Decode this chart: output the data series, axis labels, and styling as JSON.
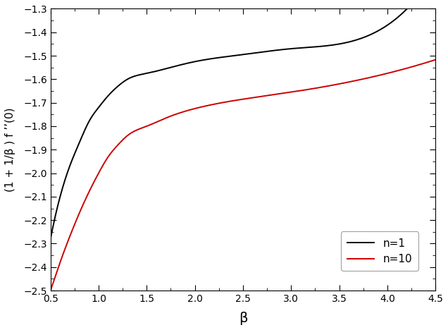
{
  "title": "",
  "xlabel": "β",
  "ylabel": "(1 + 1/β ) f ’’(0)",
  "xlim": [
    0.5,
    4.5
  ],
  "ylim": [
    -2.5,
    -1.3
  ],
  "xticks": [
    0.5,
    1.0,
    1.5,
    2.0,
    2.5,
    3.0,
    3.5,
    4.0,
    4.5
  ],
  "yticks": [
    -2.5,
    -2.4,
    -2.3,
    -2.2,
    -2.1,
    -2.0,
    -1.9,
    -1.8,
    -1.7,
    -1.6,
    -1.5,
    -1.4,
    -1.3
  ],
  "line_n1_color": "#000000",
  "line_n10_color": "#cc0000",
  "legend_labels": [
    "n=1",
    "n=10"
  ],
  "background_color": "#ffffff",
  "linewidth": 1.4,
  "n1_points_x": [
    0.5,
    0.6,
    0.7,
    0.8,
    0.9,
    1.0,
    1.1,
    1.2,
    1.3,
    1.5,
    1.7,
    2.0,
    2.5,
    3.0,
    3.5,
    4.0
  ],
  "n1_points_y": [
    -2.28,
    -2.1,
    -1.97,
    -1.87,
    -1.78,
    -1.72,
    -1.67,
    -1.63,
    -1.6,
    -1.575,
    -1.555,
    -1.525,
    -1.495,
    -1.47,
    -1.45,
    -1.37
  ],
  "n10_points_x": [
    0.5,
    0.55,
    0.6,
    0.7,
    0.8,
    0.9,
    1.0,
    1.1,
    1.2,
    1.3,
    1.5,
    1.7,
    2.0,
    2.5,
    3.0,
    3.5,
    4.0
  ],
  "n10_points_y": [
    -2.5,
    -2.44,
    -2.38,
    -2.27,
    -2.17,
    -2.08,
    -2.0,
    -1.93,
    -1.88,
    -1.84,
    -1.8,
    -1.765,
    -1.725,
    -1.685,
    -1.655,
    -1.62,
    -1.575
  ]
}
